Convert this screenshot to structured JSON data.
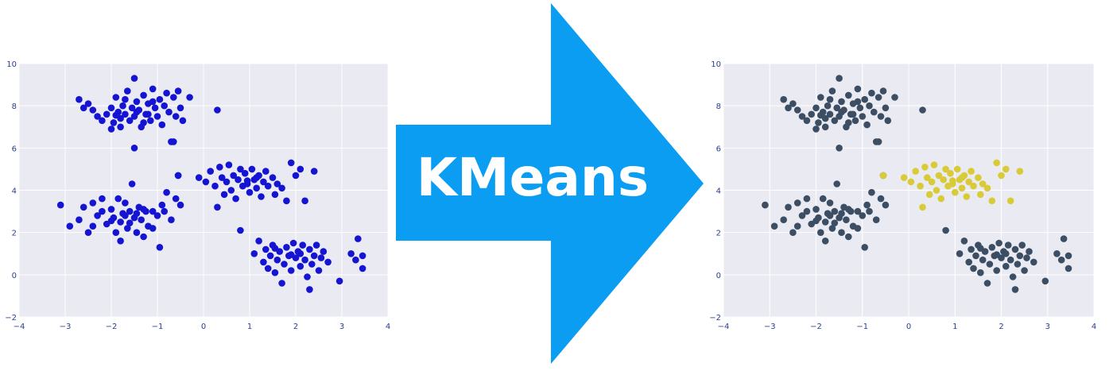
{
  "arrow": {
    "label": "KMeans",
    "color": "#0a9df1"
  },
  "style": {
    "plot_background": "#eaeaf2",
    "gridline": "#ffffff",
    "tick_label": "#2b3f8f",
    "raw_point": "#1414d2",
    "cluster_colors": {
      "a": "#3b4e63",
      "b": "#d9cb38"
    }
  },
  "chart_data": [
    {
      "type": "scatter",
      "title": "",
      "xlabel": "",
      "ylabel": "",
      "xlim": [
        -4,
        4
      ],
      "ylim": [
        -2,
        10
      ],
      "xticks": [
        "−4",
        "−3",
        "−2",
        "−1",
        "0",
        "1",
        "2",
        "3",
        "4"
      ],
      "yticks": [
        "−2",
        "0",
        "2",
        "4",
        "6",
        "8",
        "10"
      ],
      "grid": true,
      "series": [
        {
          "role": "raw",
          "color": "#1414d2",
          "points": []
        }
      ]
    },
    {
      "type": "scatter",
      "title": "",
      "xlabel": "",
      "ylabel": "",
      "xlim": [
        -4,
        4
      ],
      "ylim": [
        -2,
        10
      ],
      "xticks": [
        "−4",
        "−3",
        "−2",
        "−1",
        "0",
        "1",
        "2",
        "3",
        "4"
      ],
      "yticks": [
        "−2",
        "0",
        "2",
        "4",
        "6",
        "8",
        "10"
      ],
      "grid": true,
      "series": [
        {
          "role": "cluster",
          "color": "#3b4e63",
          "points": []
        },
        {
          "role": "cluster",
          "color": "#d9cb38",
          "points": []
        }
      ]
    }
  ],
  "cluster_points": {
    "top_left": [
      [
        -2.7,
        8.3
      ],
      [
        -2.6,
        7.9
      ],
      [
        -2.5,
        8.1
      ],
      [
        -2.3,
        7.5
      ],
      [
        -2.2,
        7.3
      ],
      [
        -2.1,
        7.6
      ],
      [
        -2.0,
        7.9
      ],
      [
        -1.95,
        7.2
      ],
      [
        -1.9,
        8.4
      ],
      [
        -1.85,
        7.7
      ],
      [
        -1.8,
        7.4
      ],
      [
        -1.75,
        8.0
      ],
      [
        -1.7,
        7.6
      ],
      [
        -1.65,
        8.7
      ],
      [
        -1.6,
        7.3
      ],
      [
        -1.55,
        7.9
      ],
      [
        -1.5,
        9.3
      ],
      [
        -1.5,
        7.5
      ],
      [
        -1.45,
        8.2
      ],
      [
        -1.4,
        7.8
      ],
      [
        -1.35,
        7.0
      ],
      [
        -1.3,
        8.5
      ],
      [
        -1.25,
        7.6
      ],
      [
        -1.2,
        8.1
      ],
      [
        -1.15,
        7.3
      ],
      [
        -1.1,
        8.8
      ],
      [
        -1.05,
        7.9
      ],
      [
        -1.0,
        7.5
      ],
      [
        -0.95,
        8.3
      ],
      [
        -0.9,
        7.1
      ],
      [
        -0.85,
        8.0
      ],
      [
        -0.8,
        8.6
      ],
      [
        -0.75,
        7.7
      ],
      [
        -0.7,
        6.3
      ],
      [
        -0.65,
        8.4
      ],
      [
        -0.6,
        7.5
      ],
      [
        -0.55,
        8.7
      ],
      [
        -0.5,
        7.9
      ],
      [
        -0.45,
        7.3
      ],
      [
        -0.3,
        8.4
      ],
      [
        0.3,
        7.8
      ],
      [
        -1.5,
        6.0
      ],
      [
        -2.0,
        6.9
      ],
      [
        -1.8,
        7.0
      ],
      [
        -1.3,
        7.2
      ],
      [
        -2.4,
        7.8
      ],
      [
        -1.7,
        8.3
      ],
      [
        -1.1,
        8.2
      ],
      [
        -0.65,
        6.3
      ],
      [
        -1.9,
        7.55
      ],
      [
        -1.45,
        7.7
      ],
      [
        -1.2,
        7.6
      ]
    ],
    "mid_left": [
      [
        -3.1,
        3.3
      ],
      [
        -2.9,
        2.3
      ],
      [
        -2.7,
        2.6
      ],
      [
        -2.6,
        3.2
      ],
      [
        -2.5,
        2.0
      ],
      [
        -2.4,
        3.4
      ],
      [
        -2.3,
        2.8
      ],
      [
        -2.2,
        3.0
      ],
      [
        -2.1,
        2.4
      ],
      [
        -2.0,
        3.1
      ],
      [
        -1.95,
        2.7
      ],
      [
        -1.9,
        2.0
      ],
      [
        -1.85,
        3.6
      ],
      [
        -1.8,
        2.5
      ],
      [
        -1.75,
        2.9
      ],
      [
        -1.7,
        3.4
      ],
      [
        -1.65,
        2.2
      ],
      [
        -1.6,
        3.0
      ],
      [
        -1.55,
        4.3
      ],
      [
        -1.5,
        2.7
      ],
      [
        -1.45,
        2.0
      ],
      [
        -1.4,
        3.2
      ],
      [
        -1.35,
        2.6
      ],
      [
        -1.3,
        1.8
      ],
      [
        -1.25,
        3.0
      ],
      [
        -1.2,
        2.3
      ],
      [
        -1.1,
        3.0
      ],
      [
        -1.0,
        2.8
      ],
      [
        -0.95,
        1.3
      ],
      [
        -0.9,
        3.3
      ],
      [
        -0.8,
        3.9
      ],
      [
        -0.7,
        2.6
      ],
      [
        -0.6,
        3.6
      ],
      [
        -0.5,
        3.3
      ],
      [
        -0.55,
        4.7
      ],
      [
        -1.8,
        1.6
      ],
      [
        -2.2,
        3.6
      ],
      [
        -2.4,
        2.3
      ],
      [
        -1.6,
        2.45
      ],
      [
        -1.3,
        3.1
      ],
      [
        -1.1,
        2.2
      ],
      [
        -0.85,
        3.0
      ],
      [
        -1.7,
        2.8
      ],
      [
        -2.0,
        2.55
      ],
      [
        -1.45,
        2.9
      ]
    ],
    "mid_right": [
      [
        -0.1,
        4.6
      ],
      [
        0.05,
        4.4
      ],
      [
        0.15,
        4.9
      ],
      [
        0.25,
        4.2
      ],
      [
        0.35,
        5.1
      ],
      [
        0.4,
        4.6
      ],
      [
        0.45,
        3.8
      ],
      [
        0.5,
        4.4
      ],
      [
        0.55,
        5.2
      ],
      [
        0.6,
        4.0
      ],
      [
        0.65,
        4.7
      ],
      [
        0.7,
        3.6
      ],
      [
        0.75,
        4.5
      ],
      [
        0.8,
        5.0
      ],
      [
        0.85,
        4.2
      ],
      [
        0.9,
        4.8
      ],
      [
        0.95,
        4.3
      ],
      [
        1.0,
        3.9
      ],
      [
        1.05,
        5.0
      ],
      [
        1.1,
        4.5
      ],
      [
        1.15,
        4.1
      ],
      [
        1.2,
        4.7
      ],
      [
        1.25,
        3.7
      ],
      [
        1.3,
        4.4
      ],
      [
        1.35,
        4.9
      ],
      [
        1.4,
        4.2
      ],
      [
        1.5,
        4.6
      ],
      [
        1.55,
        3.8
      ],
      [
        1.6,
        4.3
      ],
      [
        1.7,
        4.1
      ],
      [
        1.8,
        3.5
      ],
      [
        1.9,
        5.3
      ],
      [
        2.0,
        4.7
      ],
      [
        2.1,
        5.0
      ],
      [
        2.2,
        3.5
      ],
      [
        2.4,
        4.9
      ],
      [
        0.3,
        3.2
      ],
      [
        -0.55,
        4.7
      ],
      [
        0.95,
        4.45
      ],
      [
        1.15,
        4.6
      ]
    ],
    "bottom_right": [
      [
        0.8,
        2.1
      ],
      [
        1.1,
        1.0
      ],
      [
        1.2,
        1.6
      ],
      [
        1.3,
        0.6
      ],
      [
        1.35,
        1.2
      ],
      [
        1.4,
        0.3
      ],
      [
        1.45,
        0.9
      ],
      [
        1.5,
        1.4
      ],
      [
        1.55,
        0.1
      ],
      [
        1.6,
        0.7
      ],
      [
        1.65,
        1.1
      ],
      [
        1.7,
        -0.4
      ],
      [
        1.75,
        0.5
      ],
      [
        1.8,
        1.3
      ],
      [
        1.85,
        0.9
      ],
      [
        1.9,
        0.2
      ],
      [
        1.95,
        1.5
      ],
      [
        2.0,
        0.8
      ],
      [
        2.05,
        1.1
      ],
      [
        2.1,
        0.4
      ],
      [
        2.15,
        1.4
      ],
      [
        2.2,
        0.7
      ],
      [
        2.25,
        -0.1
      ],
      [
        2.3,
        1.2
      ],
      [
        2.35,
        0.5
      ],
      [
        2.4,
        0.9
      ],
      [
        2.45,
        1.4
      ],
      [
        2.5,
        0.2
      ],
      [
        2.55,
        0.8
      ],
      [
        2.6,
        1.1
      ],
      [
        2.7,
        0.6
      ],
      [
        2.3,
        -0.7
      ],
      [
        2.95,
        -0.3
      ],
      [
        3.2,
        1.0
      ],
      [
        3.35,
        1.7
      ],
      [
        3.45,
        0.3
      ],
      [
        3.45,
        0.9
      ],
      [
        3.3,
        0.7
      ],
      [
        1.55,
        1.25
      ],
      [
        1.9,
        0.95
      ],
      [
        2.1,
        1.0
      ]
    ]
  }
}
